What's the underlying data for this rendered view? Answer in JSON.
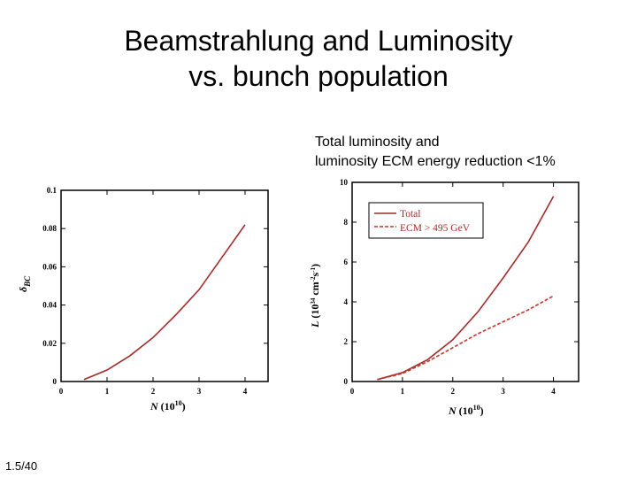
{
  "slide": {
    "title_line1": "Beamstrahlung and Luminosity",
    "title_line2": "vs. bunch population",
    "caption_line1": "Total luminosity and",
    "caption_line2": "luminosity ECM energy reduction <1%",
    "slide_number": "1.5/40"
  },
  "chart_data": [
    {
      "type": "line",
      "title": "",
      "xlabel": "N (10^10)",
      "ylabel": "δ_BC",
      "xlim": [
        0,
        4.5
      ],
      "ylim": [
        0,
        0.1
      ],
      "x_ticks": [
        "0",
        "1",
        "2",
        "3",
        "4"
      ],
      "y_ticks": [
        "0",
        "0.02",
        "0.04",
        "0.06",
        "0.08",
        "0.1"
      ],
      "grid": false,
      "series": [
        {
          "color": "#a52a2a",
          "dash": "solid",
          "x": [
            0.5,
            1.0,
            1.5,
            2.0,
            2.5,
            3.0,
            3.5,
            4.0
          ],
          "y": [
            0.001,
            0.006,
            0.0135,
            0.023,
            0.035,
            0.048,
            0.065,
            0.082
          ]
        }
      ]
    },
    {
      "type": "line",
      "title": "",
      "xlabel": "N (10^10)",
      "ylabel": "L (10^34 cm^-2 s^-1)",
      "xlim": [
        0,
        4.5
      ],
      "ylim": [
        0,
        10
      ],
      "x_ticks": [
        "0",
        "1",
        "2",
        "3",
        "4"
      ],
      "y_ticks": [
        "0",
        "2",
        "4",
        "6",
        "8",
        "10"
      ],
      "grid": false,
      "legend_position": "top-left",
      "series": [
        {
          "name": "Total",
          "color": "#a52a2a",
          "dash": "solid",
          "x": [
            0.5,
            1.0,
            1.5,
            2.0,
            2.5,
            3.0,
            3.5,
            4.0
          ],
          "y": [
            0.1,
            0.45,
            1.1,
            2.1,
            3.5,
            5.2,
            7.0,
            9.3
          ]
        },
        {
          "name": "ECM > 495 GeV",
          "color": "#c0392b",
          "dash": "dashed",
          "x": [
            0.5,
            1.0,
            1.5,
            2.0,
            2.5,
            3.0,
            3.5,
            4.0
          ],
          "y": [
            0.1,
            0.4,
            1.0,
            1.7,
            2.4,
            3.0,
            3.6,
            4.3
          ]
        }
      ]
    }
  ]
}
